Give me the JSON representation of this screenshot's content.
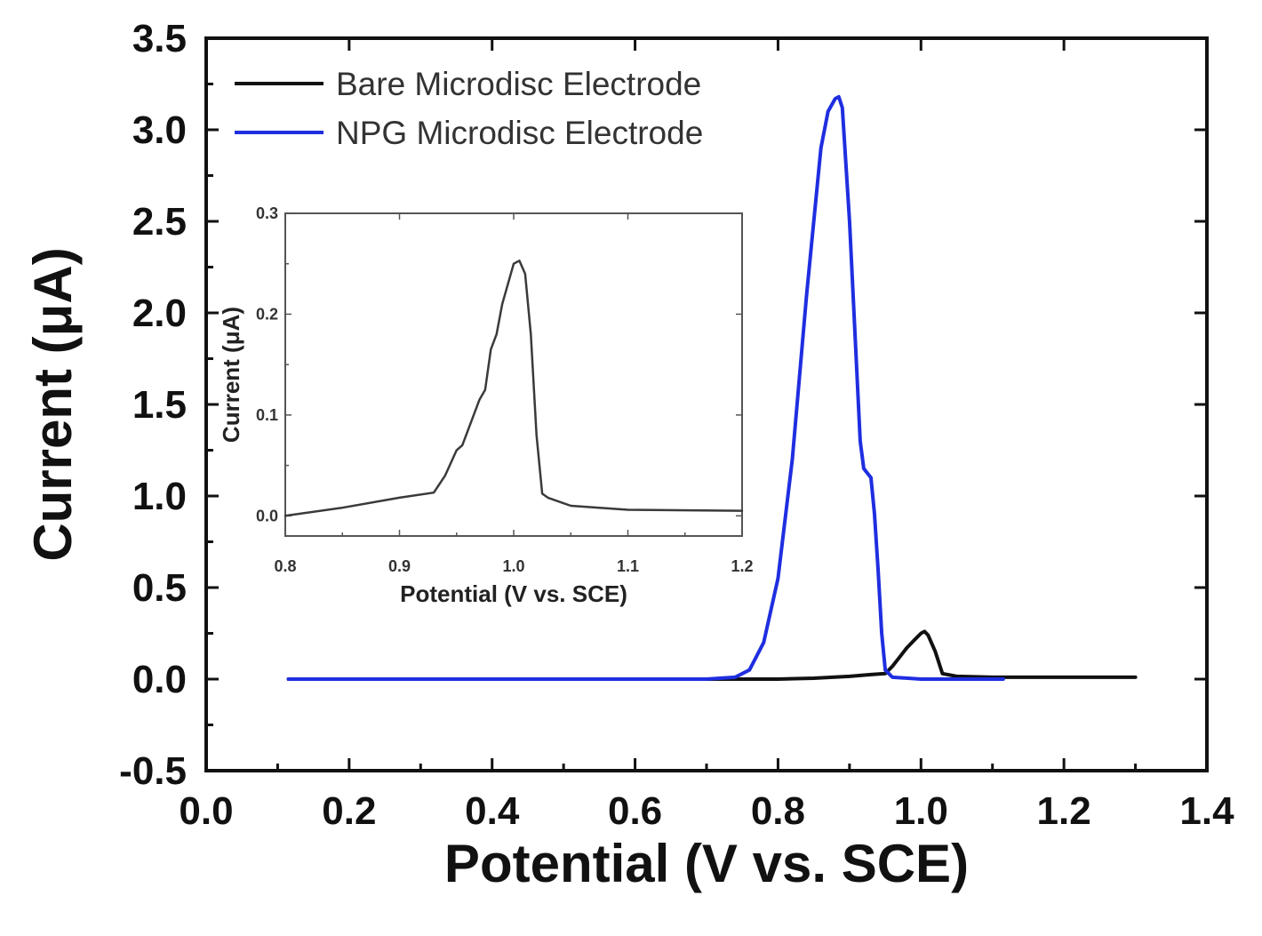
{
  "chart_data": [
    {
      "type": "line",
      "title": "",
      "xlabel": "Potential (V vs. SCE)",
      "ylabel": "Current (μA)",
      "xlim": [
        0.0,
        1.4
      ],
      "ylim": [
        -0.5,
        3.5
      ],
      "x_ticks": [
        "0.0",
        "0.2",
        "0.4",
        "0.6",
        "0.8",
        "1.0",
        "1.2",
        "1.4"
      ],
      "y_ticks": [
        "-0.5",
        "0.0",
        "0.5",
        "1.0",
        "1.5",
        "2.0",
        "2.5",
        "3.0",
        "3.5"
      ],
      "grid": false,
      "legend_position": "top-left",
      "series": [
        {
          "name": "Bare Microdisc Electrode",
          "color": "#111111",
          "x": [
            0.115,
            0.3,
            0.5,
            0.7,
            0.8,
            0.85,
            0.9,
            0.93,
            0.95,
            0.96,
            0.97,
            0.98,
            0.99,
            1.0,
            1.005,
            1.01,
            1.02,
            1.03,
            1.05,
            1.1,
            1.2,
            1.3
          ],
          "y": [
            0.0,
            0.0,
            0.0,
            0.0,
            0.0,
            0.005,
            0.015,
            0.025,
            0.03,
            0.07,
            0.12,
            0.17,
            0.21,
            0.25,
            0.26,
            0.24,
            0.15,
            0.03,
            0.015,
            0.01,
            0.01,
            0.01
          ]
        },
        {
          "name": "NPG Microdisc Electrode",
          "color": "#1f2ee0",
          "x": [
            0.115,
            0.3,
            0.5,
            0.7,
            0.74,
            0.76,
            0.78,
            0.8,
            0.82,
            0.84,
            0.86,
            0.87,
            0.88,
            0.885,
            0.89,
            0.9,
            0.91,
            0.915,
            0.92,
            0.93,
            0.935,
            0.94,
            0.945,
            0.95,
            0.96,
            1.0,
            1.05,
            1.115
          ],
          "y": [
            0.0,
            0.0,
            0.0,
            0.0,
            0.01,
            0.05,
            0.2,
            0.55,
            1.2,
            2.1,
            2.9,
            3.1,
            3.17,
            3.18,
            3.12,
            2.5,
            1.7,
            1.3,
            1.15,
            1.1,
            0.9,
            0.6,
            0.25,
            0.05,
            0.01,
            0.0,
            0.0,
            0.0
          ]
        }
      ]
    },
    {
      "type": "line",
      "title": "",
      "xlabel": "Potential (V vs. SCE)",
      "ylabel": "Current (μA)",
      "xlim": [
        0.8,
        1.2
      ],
      "ylim": [
        -0.02,
        0.3
      ],
      "x_ticks": [
        "0.8",
        "0.9",
        "1.0",
        "1.1",
        "1.2"
      ],
      "y_ticks": [
        "0.0",
        "0.1",
        "0.2",
        "0.3"
      ],
      "grid": false,
      "legend_position": "none",
      "series": [
        {
          "name": "Bare Microdisc Electrode",
          "color": "#3a3a3a",
          "x": [
            0.8,
            0.85,
            0.9,
            0.93,
            0.94,
            0.95,
            0.955,
            0.96,
            0.97,
            0.975,
            0.98,
            0.985,
            0.99,
            1.0,
            1.005,
            1.01,
            1.015,
            1.02,
            1.025,
            1.03,
            1.05,
            1.1,
            1.2
          ],
          "y": [
            0.0,
            0.008,
            0.018,
            0.023,
            0.04,
            0.065,
            0.07,
            0.085,
            0.115,
            0.125,
            0.165,
            0.18,
            0.21,
            0.25,
            0.253,
            0.24,
            0.18,
            0.08,
            0.022,
            0.018,
            0.01,
            0.006,
            0.005
          ]
        }
      ]
    }
  ]
}
